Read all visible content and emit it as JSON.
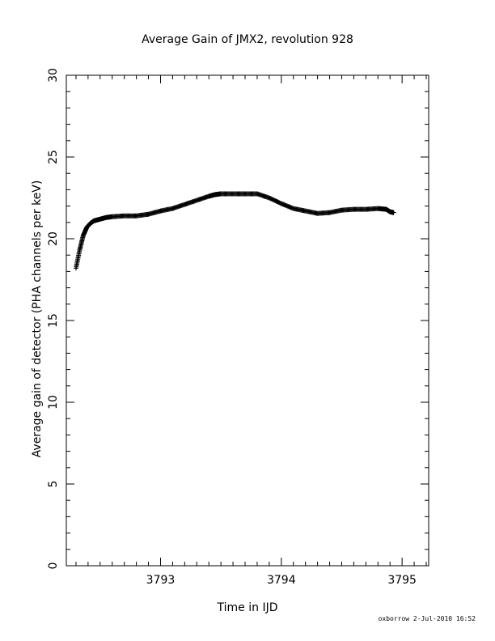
{
  "chart_data": {
    "type": "scatter",
    "title": "Average Gain of JMX2, revolution 928",
    "xlabel": "Time in IJD",
    "ylabel": "Average gain of detector (PHA channels per keV)",
    "xlim": [
      3792.22,
      3795.22
    ],
    "ylim": [
      0,
      30
    ],
    "x_ticks": [
      3793,
      3794,
      3795
    ],
    "y_ticks": [
      0,
      5,
      10,
      15,
      20,
      25,
      30
    ],
    "marker": "plus",
    "grid": false,
    "x": [
      3792.3,
      3792.33,
      3792.36,
      3792.39,
      3792.42,
      3792.45,
      3792.5,
      3792.55,
      3792.6,
      3792.7,
      3792.8,
      3792.9,
      3793.0,
      3793.1,
      3793.2,
      3793.3,
      3793.4,
      3793.45,
      3793.5,
      3793.6,
      3793.7,
      3793.8,
      3793.9,
      3794.0,
      3794.1,
      3794.2,
      3794.3,
      3794.4,
      3794.5,
      3794.6,
      3794.7,
      3794.8,
      3794.87,
      3794.9,
      3794.93
    ],
    "y": [
      18.2,
      19.3,
      20.2,
      20.7,
      20.95,
      21.1,
      21.2,
      21.3,
      21.35,
      21.4,
      21.4,
      21.5,
      21.7,
      21.85,
      22.1,
      22.35,
      22.6,
      22.7,
      22.75,
      22.75,
      22.75,
      22.75,
      22.5,
      22.15,
      21.85,
      21.7,
      21.55,
      21.6,
      21.75,
      21.8,
      21.8,
      21.85,
      21.8,
      21.65,
      21.6
    ]
  },
  "footer": "oxborrow   2-Jul-2010 16:52"
}
